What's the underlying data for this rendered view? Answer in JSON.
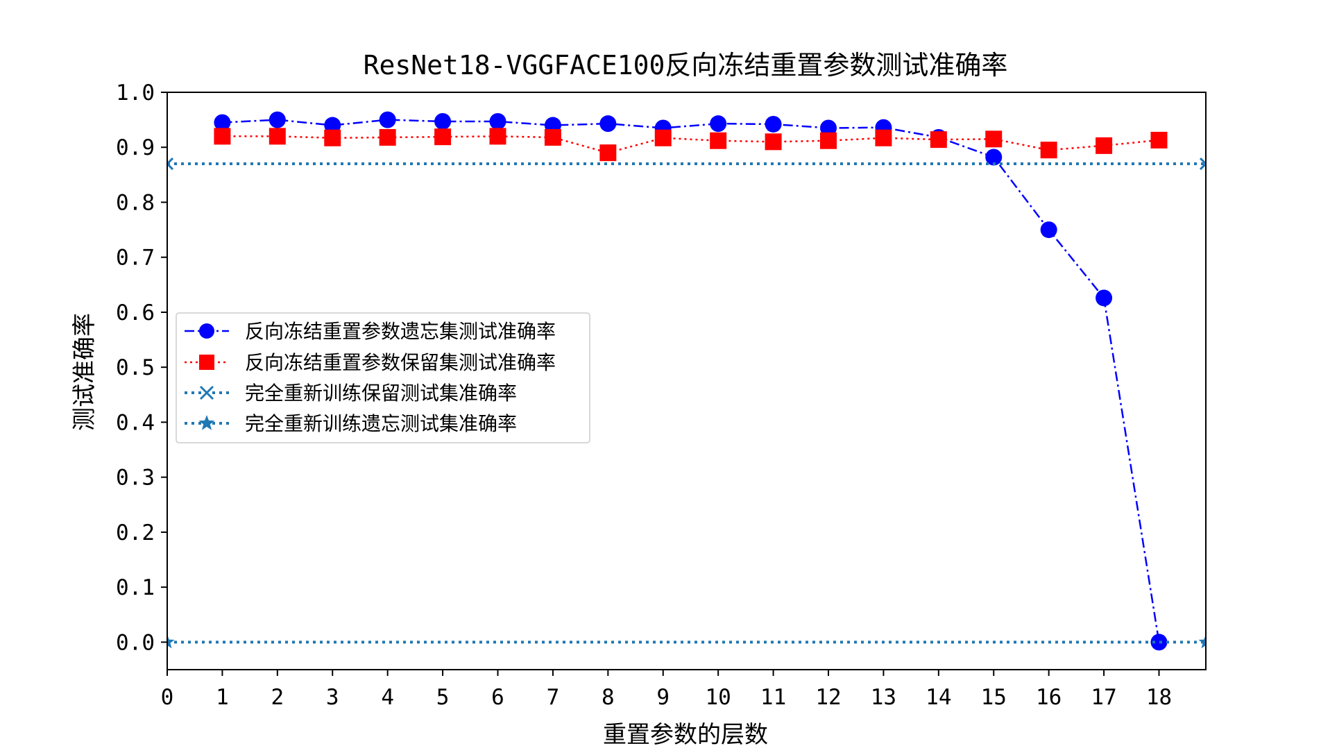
{
  "chart_data": {
    "type": "line",
    "title": "ResNet18-VGGFACE100反向冻结重置参数测试准确率",
    "xlabel": "重置参数的层数",
    "ylabel": "测试准确率",
    "xlim": [
      0,
      18.85
    ],
    "ylim": [
      -0.05,
      1.0
    ],
    "xticks": [
      0,
      1,
      2,
      3,
      4,
      5,
      6,
      7,
      8,
      9,
      10,
      11,
      12,
      13,
      14,
      15,
      16,
      17,
      18
    ],
    "yticks": [
      "0.0",
      "0.1",
      "0.2",
      "0.3",
      "0.4",
      "0.5",
      "0.6",
      "0.7",
      "0.8",
      "0.9",
      "1.0"
    ],
    "grid": false,
    "legend_position": "center-left",
    "series": [
      {
        "name": "反向冻结重置参数遗忘集测试准确率",
        "color": "#0000ff",
        "marker": "circle",
        "linestyle": "dashdot",
        "x": [
          1,
          2,
          3,
          4,
          5,
          6,
          7,
          8,
          9,
          10,
          11,
          12,
          13,
          14,
          15,
          16,
          17,
          18
        ],
        "y": [
          0.945,
          0.95,
          0.94,
          0.95,
          0.947,
          0.947,
          0.94,
          0.943,
          0.935,
          0.943,
          0.942,
          0.935,
          0.936,
          0.918,
          0.882,
          0.75,
          0.626,
          0.0
        ]
      },
      {
        "name": "反向冻结重置参数保留集测试准确率",
        "color": "#ff0000",
        "marker": "square",
        "linestyle": "dotted",
        "x": [
          1,
          2,
          3,
          4,
          5,
          6,
          7,
          8,
          9,
          10,
          11,
          12,
          13,
          14,
          15,
          16,
          17,
          18
        ],
        "y": [
          0.92,
          0.92,
          0.917,
          0.918,
          0.919,
          0.92,
          0.918,
          0.89,
          0.917,
          0.912,
          0.91,
          0.912,
          0.917,
          0.914,
          0.915,
          0.895,
          0.903,
          0.913
        ]
      },
      {
        "name": "完全重新训练保留测试集准确率",
        "color": "#1f77b4",
        "marker": "x",
        "linestyle": "dotted",
        "x": [
          0,
          18.85
        ],
        "y": [
          0.87,
          0.87
        ]
      },
      {
        "name": "完全重新训练遗忘测试集准确率",
        "color": "#1f77b4",
        "marker": "star",
        "linestyle": "dotted",
        "x": [
          0,
          18.85
        ],
        "y": [
          0.0,
          0.0
        ]
      }
    ]
  }
}
